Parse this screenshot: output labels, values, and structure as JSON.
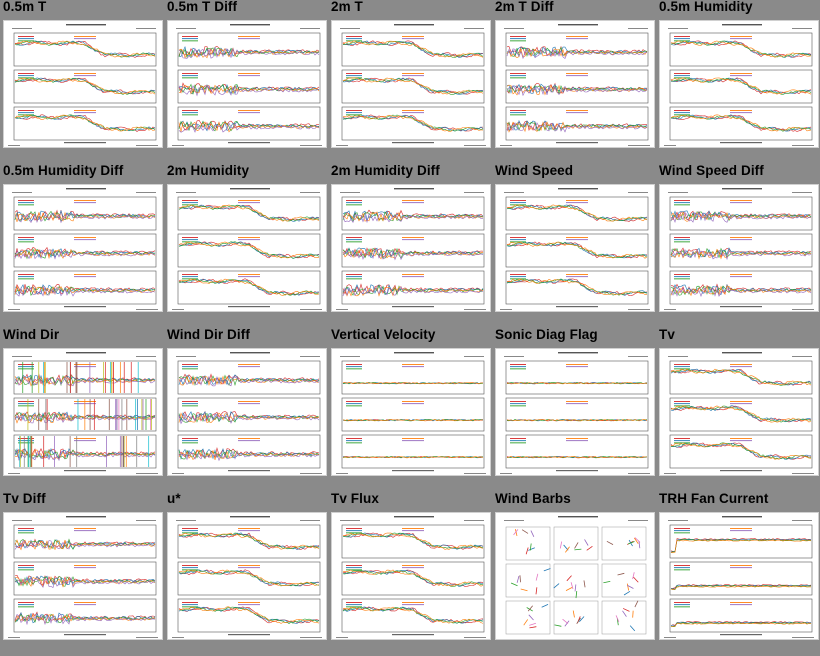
{
  "tiles": [
    {
      "id": "05m-t",
      "title": "0.5m T",
      "mode": "wave"
    },
    {
      "id": "05m-t-diff",
      "title": "0.5m T Diff",
      "mode": "noise"
    },
    {
      "id": "2m-t",
      "title": "2m T",
      "mode": "wave"
    },
    {
      "id": "2m-t-diff",
      "title": "2m T Diff",
      "mode": "noise"
    },
    {
      "id": "05m-humidity",
      "title": "0.5m Humidity",
      "mode": "wave"
    },
    {
      "id": "05m-humidity-diff",
      "title": "0.5m Humidity Diff",
      "mode": "noise"
    },
    {
      "id": "2m-humidity",
      "title": "2m Humidity",
      "mode": "wave"
    },
    {
      "id": "2m-humidity-diff",
      "title": "2m Humidity Diff",
      "mode": "noise"
    },
    {
      "id": "wind-speed",
      "title": "Wind Speed",
      "mode": "wave"
    },
    {
      "id": "wind-speed-diff",
      "title": "Wind Speed Diff",
      "mode": "noise"
    },
    {
      "id": "wind-dir",
      "title": "Wind Dir",
      "mode": "bars"
    },
    {
      "id": "wind-dir-diff",
      "title": "Wind Dir Diff",
      "mode": "noise"
    },
    {
      "id": "vertical-velocity",
      "title": "Vertical Velocity",
      "mode": "flat"
    },
    {
      "id": "sonic-diag-flag",
      "title": "Sonic Diag Flag",
      "mode": "flat"
    },
    {
      "id": "tv",
      "title": "Tv",
      "mode": "wave"
    },
    {
      "id": "tv-diff",
      "title": "Tv Diff",
      "mode": "noise"
    },
    {
      "id": "u-star",
      "title": "u*",
      "mode": "wave"
    },
    {
      "id": "tv-flux",
      "title": "Tv Flux",
      "mode": "wave"
    },
    {
      "id": "wind-barbs",
      "title": "Wind Barbs",
      "mode": "barbs"
    },
    {
      "id": "trh-fan-current",
      "title": "TRH Fan Current",
      "mode": "fan"
    }
  ],
  "colors": {
    "background": "#8a8a8a",
    "series": [
      "#d62728",
      "#1f77b4",
      "#2ca02c",
      "#ff7f0e",
      "#9467bd",
      "#8c564b",
      "#e377c2",
      "#17becf",
      "#bcbd22",
      "#7f7f7f"
    ]
  }
}
